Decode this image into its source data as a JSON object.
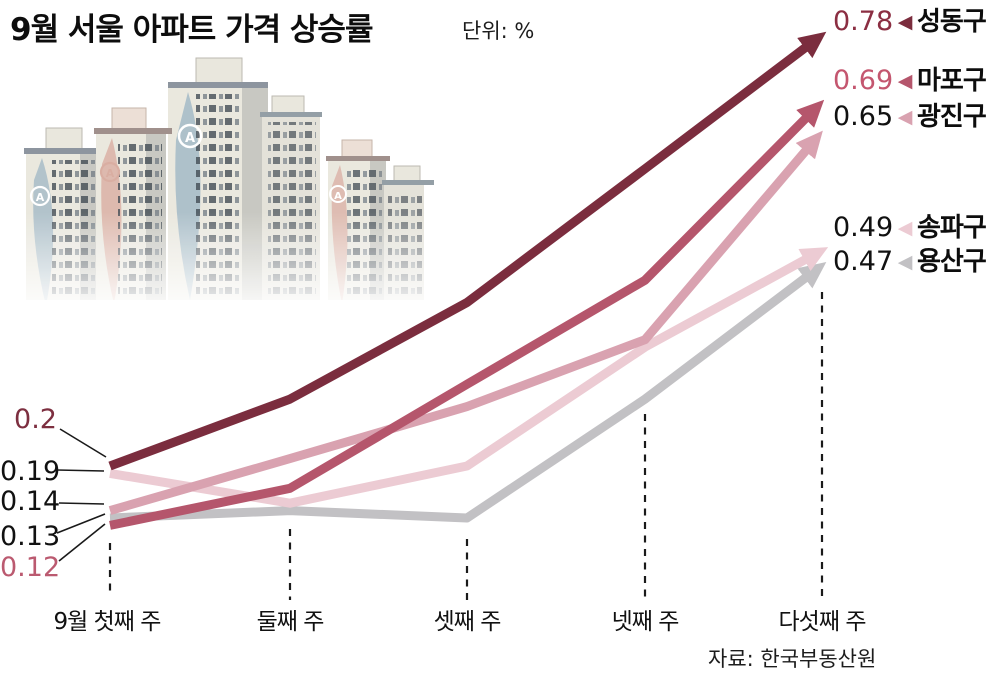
{
  "header": {
    "title": "9월 서울 아파트 가격 상승률",
    "unit": "단위: %"
  },
  "source": "자료: 한국부동산원",
  "start_value_labels": [
    {
      "text": "0.2",
      "color": "#7d2f40"
    },
    {
      "text": "0.19",
      "color": "#111111"
    },
    {
      "text": "0.14",
      "color": "#111111"
    },
    {
      "text": "0.13",
      "color": "#111111"
    },
    {
      "text": "0.12",
      "color": "#bb5a70"
    }
  ],
  "end_labels": [
    {
      "value": "0.78",
      "district": "성동구",
      "value_color": "#8b2e42",
      "arrow_color": "#7b2d3e"
    },
    {
      "value": "0.69",
      "district": "마포구",
      "value_color": "#c4566f",
      "arrow_color": "#b5566c"
    },
    {
      "value": "0.65",
      "district": "광진구",
      "value_color": "#111111",
      "arrow_color": "#d9a2b0"
    },
    {
      "value": "0.49",
      "district": "송파구",
      "value_color": "#111111",
      "arrow_color": "#eccbd3"
    },
    {
      "value": "0.47",
      "district": "용산구",
      "value_color": "#111111",
      "arrow_color": "#c2c1c4"
    }
  ],
  "chart_data": {
    "type": "line",
    "title": "9월 서울 아파트 가격 상승률",
    "unit": "%",
    "categories": [
      "9월 첫째 주",
      "둘째 주",
      "셋째 주",
      "넷째 주",
      "다섯째 주"
    ],
    "series": [
      {
        "name": "성동구",
        "color": "#7b2d3e",
        "values": [
          0.2,
          0.29,
          0.42,
          0.6,
          0.78
        ],
        "start_label": "0.2",
        "end_label": "0.78"
      },
      {
        "name": "마포구",
        "color": "#b5566c",
        "values": [
          0.12,
          0.17,
          0.31,
          0.45,
          0.69
        ],
        "start_label": "0.12",
        "end_label": "0.69"
      },
      {
        "name": "광진구",
        "color": "#d9a2b0",
        "values": [
          0.14,
          0.21,
          0.28,
          0.37,
          0.65
        ],
        "start_label": "0.14",
        "end_label": "0.65"
      },
      {
        "name": "송파구",
        "color": "#eccbd3",
        "values": [
          0.19,
          0.15,
          0.2,
          0.36,
          0.49
        ],
        "start_label": "0.19",
        "end_label": "0.49"
      },
      {
        "name": "용산구",
        "color": "#c2c1c4",
        "values": [
          0.13,
          0.14,
          0.13,
          0.29,
          0.47
        ],
        "start_label": "0.13",
        "end_label": "0.47"
      }
    ],
    "ylim": [
      0.1,
      0.8
    ],
    "xlabel": "",
    "ylabel": "",
    "grid": false,
    "legend_position": "right-edge-labels-with-arrows",
    "source": "자료: 한국부동산원"
  }
}
